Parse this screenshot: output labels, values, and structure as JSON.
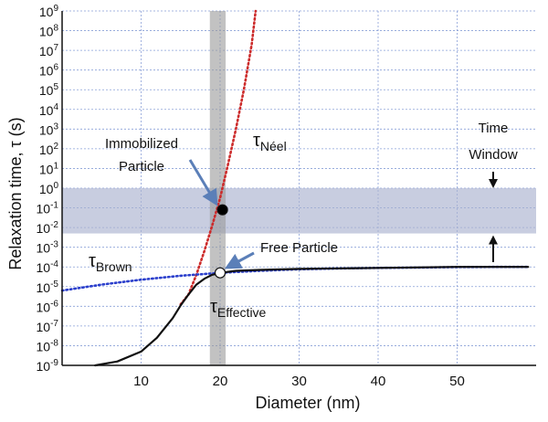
{
  "chart_data": {
    "type": "line",
    "xlabel": "Diameter (nm)",
    "ylabel": "Relaxation time, τ (s)",
    "x_ticks": [
      10,
      20,
      30,
      40,
      50
    ],
    "y_ticks_exp": [
      -9,
      -8,
      -7,
      -6,
      -5,
      -4,
      -3,
      -2,
      -1,
      0,
      1,
      2,
      3,
      4,
      5,
      6,
      7,
      8,
      9
    ],
    "xlim": [
      0,
      60
    ],
    "ylim_log10": [
      -9,
      9
    ],
    "y_scale": "log",
    "grid": true,
    "series": [
      {
        "name": "τNéel",
        "color": "#cc2b2b",
        "style": "dotted",
        "x": [
          15,
          16,
          17,
          18,
          19,
          20,
          21,
          22,
          23,
          24,
          24.5
        ],
        "log10_y": [
          -5.9,
          -5.4,
          -4.4,
          -3.2,
          -1.9,
          -0.5,
          1.2,
          3.0,
          5.0,
          7.3,
          9.0
        ]
      },
      {
        "name": "τBrown",
        "color": "#2b3fcc",
        "style": "dotted",
        "x": [
          0,
          5,
          10,
          15,
          20,
          25,
          30,
          35,
          40,
          45,
          50,
          55,
          59
        ],
        "log10_y": [
          -5.2,
          -4.9,
          -4.65,
          -4.45,
          -4.3,
          -4.2,
          -4.12,
          -4.08,
          -4.05,
          -4.03,
          -4.01,
          -4.0,
          -4.0
        ]
      },
      {
        "name": "τEffective",
        "color": "#111111",
        "style": "solid",
        "x": [
          4.2,
          7,
          10,
          12,
          14,
          15,
          16,
          17,
          18,
          19,
          20,
          21,
          22,
          25,
          30,
          40,
          50,
          59
        ],
        "log10_y": [
          -9.0,
          -8.8,
          -8.3,
          -7.6,
          -6.6,
          -5.95,
          -5.4,
          -4.9,
          -4.6,
          -4.4,
          -4.32,
          -4.25,
          -4.2,
          -4.15,
          -4.1,
          -4.05,
          -4.0,
          -4.0
        ]
      }
    ],
    "markers": [
      {
        "label": "Immobilized Particle",
        "x": 20.3,
        "log10_y": -1.1,
        "fill": "#000000"
      },
      {
        "label": "Free Particle",
        "x": 20.0,
        "log10_y": -4.3,
        "fill": "#ffffff"
      }
    ],
    "highlight_band": {
      "log10_y": [
        -2.3,
        0
      ],
      "color": "#aab2d0",
      "label": "Time Window"
    },
    "highlight_column": {
      "x": [
        18.7,
        20.7
      ],
      "color": "#9a9a9a"
    },
    "annotations": {
      "immobilized": [
        "Immobilized",
        "Particle"
      ],
      "time_window": [
        "Time",
        "Window"
      ],
      "free": "Free Particle",
      "neel_main": "τ",
      "neel_sub": "Néel",
      "brown_main": "τ",
      "brown_sub": "Brown",
      "effective_main": "τ",
      "effective_sub": "Effective"
    }
  }
}
